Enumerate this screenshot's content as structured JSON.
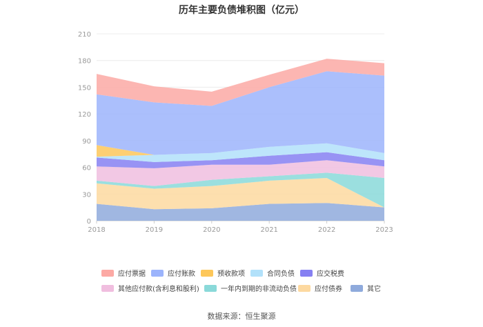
{
  "chart_data": {
    "type": "area",
    "title": "历年主要负债堆积图（亿元）",
    "x": [
      "2018",
      "2019",
      "2020",
      "2021",
      "2022",
      "2023"
    ],
    "ylim": [
      0,
      210
    ],
    "yticks": [
      0,
      30,
      60,
      90,
      120,
      150,
      180,
      210
    ],
    "grid": true,
    "legend_position": "bottom",
    "series": [
      {
        "name": "其它",
        "color": "#8faadc",
        "values": [
          19,
          13,
          14,
          19,
          20,
          15
        ]
      },
      {
        "name": "应付债券",
        "color": "#fdd9a0",
        "values": [
          23,
          23,
          25,
          26,
          28,
          0
        ]
      },
      {
        "name": "一年内到期的非流动负债",
        "color": "#8ad9d9",
        "values": [
          3,
          3,
          7,
          5,
          6,
          33
        ]
      },
      {
        "name": "其他应付款(含利息和股利)",
        "color": "#f0bedf",
        "values": [
          16,
          20,
          17,
          13,
          14,
          13
        ]
      },
      {
        "name": "应交税费",
        "color": "#8680f2",
        "values": [
          10,
          7,
          5,
          10,
          9,
          7
        ]
      },
      {
        "name": "合同负债",
        "color": "#b2e1fa",
        "values": [
          1,
          8,
          8,
          10,
          10,
          8
        ]
      },
      {
        "name": "预收款项",
        "color": "#fdc75a",
        "values": [
          13,
          0,
          0,
          0,
          0,
          0
        ]
      },
      {
        "name": "应付账款",
        "color": "#9cb4fc",
        "values": [
          57,
          59,
          53,
          67,
          81,
          87
        ]
      },
      {
        "name": "应付票据",
        "color": "#fca9a4",
        "values": [
          23,
          18,
          16,
          14,
          14,
          14
        ]
      }
    ]
  },
  "legend_order": [
    "应付票据",
    "应付账款",
    "预收款项",
    "合同负债",
    "应交税费",
    "其他应付款(含利息和股利)",
    "一年内到期的非流动负债",
    "应付债券",
    "其它"
  ],
  "source": "数据来源：恒生聚源"
}
